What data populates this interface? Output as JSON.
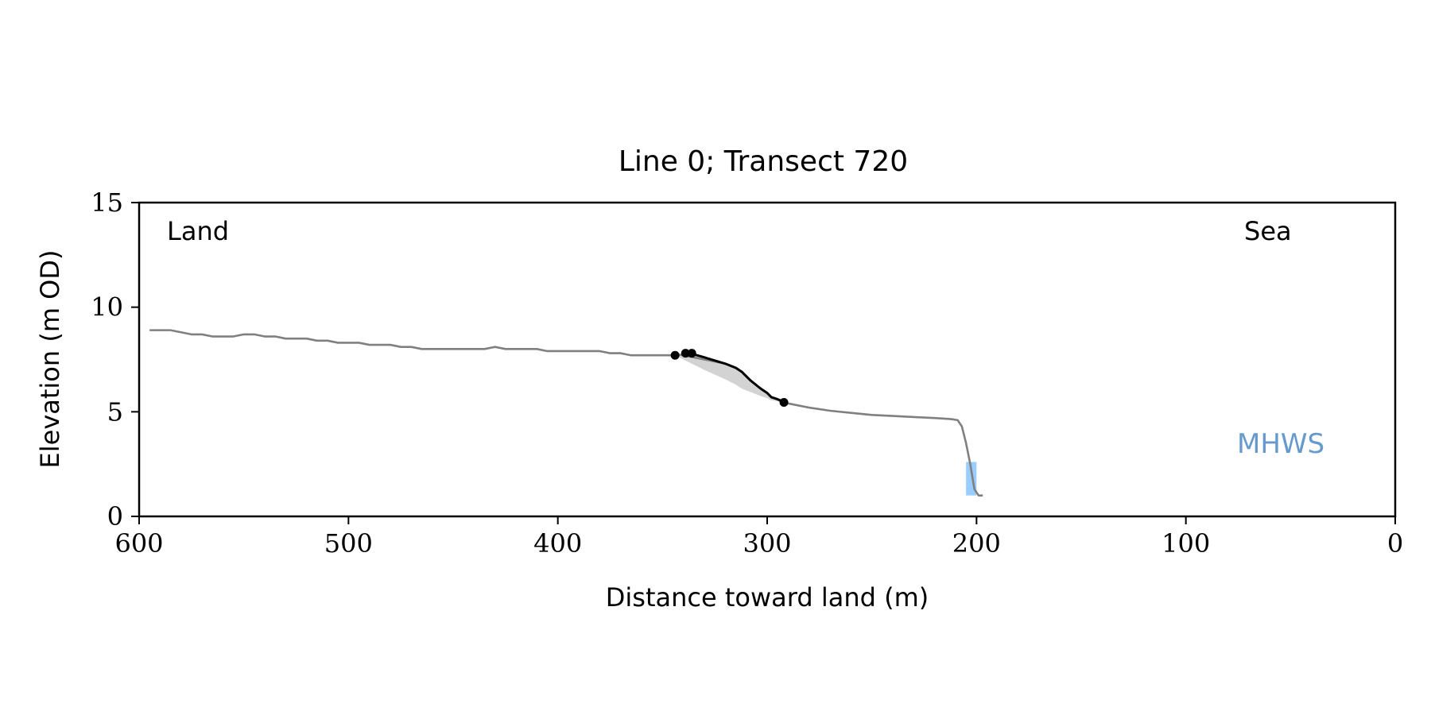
{
  "chart_data": {
    "type": "line",
    "title": "Line 0; Transect 720",
    "xlabel": "Distance toward land (m)",
    "ylabel": "Elevation (m OD)",
    "xlim": [
      600,
      0
    ],
    "ylim": [
      0,
      15
    ],
    "x_ticks": [
      "600",
      "500",
      "400",
      "300",
      "200",
      "100",
      "0"
    ],
    "y_ticks": [
      "0",
      "5",
      "10",
      "15"
    ],
    "grid": false,
    "annotations": {
      "land": "Land",
      "sea": "Sea",
      "mhws": "MHWS"
    },
    "colors": {
      "profile": "#808080",
      "feature": "#000000",
      "fill": "#d3d3d3",
      "mhws_text": "#6699cc",
      "mhws_bar": "#99ccff"
    },
    "series": [
      {
        "role": "profile",
        "x": [
          595,
          590,
          585,
          580,
          575,
          570,
          565,
          560,
          555,
          550,
          545,
          540,
          535,
          530,
          525,
          520,
          515,
          510,
          505,
          500,
          495,
          490,
          485,
          480,
          475,
          470,
          465,
          460,
          455,
          450,
          445,
          440,
          435,
          430,
          425,
          420,
          415,
          410,
          405,
          400,
          395,
          390,
          385,
          380,
          375,
          370,
          365,
          360,
          355,
          350,
          345,
          343,
          340,
          330,
          320,
          315,
          312,
          308,
          303,
          300,
          298,
          295,
          292,
          290,
          285,
          280,
          270,
          260,
          250,
          240,
          230,
          220,
          212,
          209,
          207,
          205,
          203,
          201,
          199,
          197
        ],
        "y": [
          8.9,
          8.9,
          8.9,
          8.8,
          8.7,
          8.7,
          8.6,
          8.6,
          8.6,
          8.7,
          8.7,
          8.6,
          8.6,
          8.5,
          8.5,
          8.5,
          8.4,
          8.4,
          8.3,
          8.3,
          8.3,
          8.2,
          8.2,
          8.2,
          8.1,
          8.1,
          8.0,
          8.0,
          8.0,
          8.0,
          8.0,
          8.0,
          8.0,
          8.1,
          8.0,
          8.0,
          8.0,
          8.0,
          7.9,
          7.9,
          7.9,
          7.9,
          7.9,
          7.9,
          7.8,
          7.8,
          7.7,
          7.7,
          7.7,
          7.7,
          7.7,
          7.75,
          7.7,
          7.5,
          7.3,
          7.1,
          6.9,
          6.5,
          6.1,
          5.9,
          5.7,
          5.6,
          5.5,
          5.4,
          5.3,
          5.2,
          5.05,
          4.95,
          4.85,
          4.8,
          4.75,
          4.7,
          4.65,
          4.6,
          4.3,
          3.5,
          2.5,
          1.3,
          1.0,
          1.0
        ]
      },
      {
        "role": "feature",
        "x": [
          337,
          330,
          320,
          315,
          312,
          308,
          303,
          300,
          298,
          295,
          292
        ],
        "y": [
          7.8,
          7.6,
          7.3,
          7.1,
          6.9,
          6.5,
          6.1,
          5.9,
          5.7,
          5.6,
          5.45
        ]
      }
    ],
    "markers": [
      {
        "x": 344,
        "y": 7.7
      },
      {
        "x": 339,
        "y": 7.8
      },
      {
        "x": 336,
        "y": 7.8
      },
      {
        "x": 292,
        "y": 5.45
      }
    ],
    "fill_region": {
      "x": [
        344,
        337,
        330,
        320,
        315,
        312,
        308,
        303,
        300,
        298,
        295,
        292
      ],
      "y_top": [
        7.7,
        7.8,
        7.6,
        7.3,
        7.1,
        6.9,
        6.5,
        6.1,
        5.9,
        5.7,
        5.6,
        5.45
      ],
      "y_bottom": [
        7.7,
        7.35,
        7.0,
        6.55,
        6.3,
        6.1,
        5.95,
        5.75,
        5.65,
        5.55,
        5.5,
        5.45
      ]
    },
    "mhws_bar": {
      "x": [
        200,
        205
      ],
      "y": [
        1.0,
        2.6
      ]
    }
  }
}
